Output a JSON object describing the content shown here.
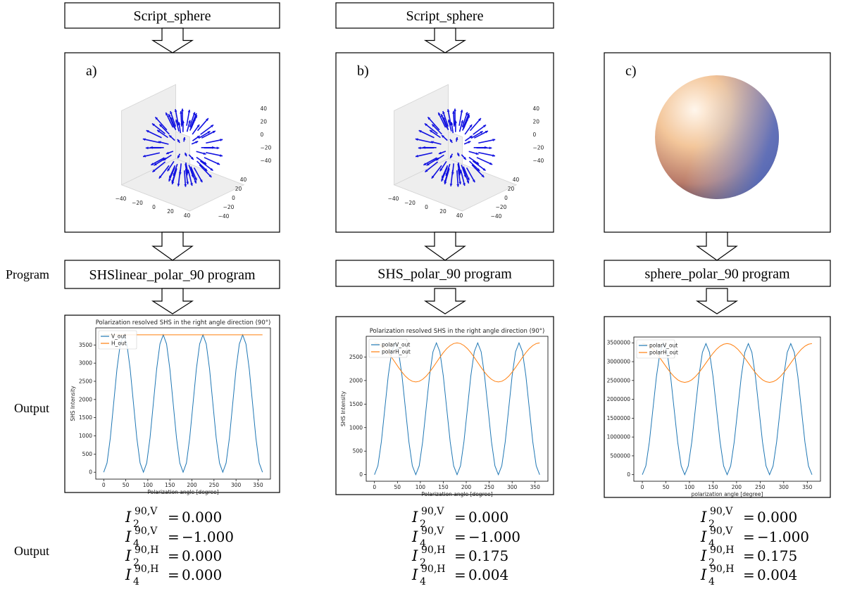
{
  "row_labels": [
    "Program",
    "Output",
    "Output"
  ],
  "equation_symbol": "I",
  "equation_relation": "=",
  "columns": [
    {
      "script": "Script_sphere",
      "panel": {
        "label": "a)",
        "axis_ticks": {
          "x": [
            "−40",
            "−20",
            "0",
            "20",
            "40"
          ],
          "y": [
            "40",
            "20",
            "0",
            "−20",
            "−40"
          ],
          "z": [
            "40",
            "20",
            "0",
            "−20",
            "−40"
          ]
        }
      },
      "program": "SHSlinear_polar_90 program",
      "chart_data": {
        "type": "line",
        "title": "Polarization resolved SHS in the right angle direction (90°)",
        "x_label": "Polarization angle [degree]",
        "y_label": "SHS Intensity",
        "x": [
          0,
          7.5,
          15,
          22.5,
          30,
          37.5,
          45,
          52.5,
          60,
          67.5,
          75,
          82.5,
          90,
          97.5,
          105,
          112.5,
          120,
          127.5,
          135,
          142.5,
          150,
          157.5,
          165,
          172.5,
          180,
          187.5,
          195,
          202.5,
          210,
          217.5,
          225,
          232.5,
          240,
          247.5,
          255,
          262.5,
          270,
          277.5,
          285,
          292.5,
          300,
          307.5,
          315,
          322.5,
          330,
          337.5,
          345,
          352.5,
          360
        ],
        "series": [
          {
            "name": "V_out",
            "color": "#1f77b4",
            "values": [
              0,
              253,
              945,
              1890,
              2835,
              3527,
              3780,
              3527,
              2835,
              1890,
              945,
              253,
              0,
              253,
              945,
              1890,
              2835,
              3527,
              3780,
              3527,
              2835,
              1890,
              945,
              253,
              0,
              253,
              945,
              1890,
              2835,
              3527,
              3780,
              3527,
              2835,
              1890,
              945,
              253,
              0,
              253,
              945,
              1890,
              2835,
              3527,
              3780,
              3527,
              2835,
              1890,
              945,
              253,
              0
            ]
          },
          {
            "name": "H_out",
            "color": "#ff7f0e",
            "values": [
              3780,
              3780,
              3780,
              3780,
              3780,
              3780,
              3780,
              3780,
              3780,
              3780,
              3780,
              3780,
              3780,
              3780,
              3780,
              3780,
              3780,
              3780,
              3780,
              3780,
              3780,
              3780,
              3780,
              3780,
              3780,
              3780,
              3780,
              3780,
              3780,
              3780,
              3780,
              3780,
              3780,
              3780,
              3780,
              3780,
              3780,
              3780,
              3780,
              3780,
              3780,
              3780,
              3780,
              3780,
              3780,
              3780,
              3780,
              3780,
              3780
            ]
          }
        ],
        "xlim": [
          -18,
          378
        ],
        "ylim": [
          -190,
          3970
        ],
        "xticks": [
          0,
          50,
          100,
          150,
          200,
          250,
          300,
          350
        ],
        "yticks": [
          0,
          500,
          1000,
          1500,
          2000,
          2500,
          3000,
          3500
        ],
        "legend": "upper left"
      },
      "equations": [
        {
          "sub": "2",
          "sup": "90,V",
          "value": "0.000"
        },
        {
          "sub": "4",
          "sup": "90,V",
          "value": "−1.000"
        },
        {
          "sub": "2",
          "sup": "90,H",
          "value": "0.000"
        },
        {
          "sub": "4",
          "sup": "90,H",
          "value": "0.000"
        }
      ]
    },
    {
      "script": "Script_sphere",
      "panel": {
        "label": "b)",
        "axis_ticks": {
          "x": [
            "−40",
            "−20",
            "0",
            "20",
            "40"
          ],
          "y": [
            "40",
            "20",
            "0",
            "−20",
            "−40"
          ],
          "z": [
            "40",
            "20",
            "0",
            "−20",
            "−40"
          ]
        }
      },
      "program": "SHS_polar_90 program",
      "chart_data": {
        "type": "line",
        "title": "Polarization resolved SHS in the right angle direction (90°)",
        "x_label": "Polarization angle [degree]",
        "y_label": "SHS Intensity",
        "x": [
          0,
          7.5,
          15,
          22.5,
          30,
          37.5,
          45,
          52.5,
          60,
          67.5,
          75,
          82.5,
          90,
          97.5,
          105,
          112.5,
          120,
          127.5,
          135,
          142.5,
          150,
          157.5,
          165,
          172.5,
          180,
          187.5,
          195,
          202.5,
          210,
          217.5,
          225,
          232.5,
          240,
          247.5,
          255,
          262.5,
          270,
          277.5,
          285,
          292.5,
          300,
          307.5,
          315,
          322.5,
          330,
          337.5,
          345,
          352.5,
          360
        ],
        "series": [
          {
            "name": "polarV_out",
            "color": "#1f77b4",
            "values": [
              0,
              188,
              700,
              1400,
              2100,
              2612,
              2800,
              2612,
              2100,
              1400,
              700,
              188,
              0,
              188,
              700,
              1400,
              2100,
              2612,
              2800,
              2612,
              2100,
              1400,
              700,
              188,
              0,
              188,
              700,
              1400,
              2100,
              2612,
              2800,
              2612,
              2100,
              1400,
              700,
              188,
              0,
              188,
              700,
              1400,
              2100,
              2612,
              2800,
              2612,
              2100,
              1400,
              700,
              188,
              0
            ]
          },
          {
            "name": "polarH_out",
            "color": "#ff7f0e",
            "values": [
              2800,
              2786,
              2744,
              2679,
              2593,
              2492,
              2385,
              2278,
              2178,
              2091,
              2026,
              1984,
              1970,
              1984,
              2026,
              2091,
              2178,
              2278,
              2385,
              2492,
              2593,
              2679,
              2744,
              2786,
              2800,
              2786,
              2744,
              2679,
              2593,
              2492,
              2385,
              2278,
              2178,
              2091,
              2026,
              1984,
              1970,
              1984,
              2026,
              2091,
              2178,
              2278,
              2385,
              2492,
              2593,
              2679,
              2744,
              2786,
              2800
            ]
          }
        ],
        "xlim": [
          -18,
          378
        ],
        "ylim": [
          -140,
          2940
        ],
        "xticks": [
          0,
          50,
          100,
          150,
          200,
          250,
          300,
          350
        ],
        "yticks": [
          0,
          500,
          1000,
          1500,
          2000,
          2500
        ],
        "legend": "upper left"
      },
      "equations": [
        {
          "sub": "2",
          "sup": "90,V",
          "value": "0.000"
        },
        {
          "sub": "4",
          "sup": "90,V",
          "value": "−1.000"
        },
        {
          "sub": "2",
          "sup": "90,H",
          "value": "0.175"
        },
        {
          "sub": "4",
          "sup": "90,H",
          "value": "0.004"
        }
      ]
    },
    {
      "panel": {
        "label": "c)"
      },
      "program": "sphere_polar_90 program",
      "chart_data": {
        "type": "line",
        "x_label": "polarization angle [degree]",
        "x": [
          0,
          7.5,
          15,
          22.5,
          30,
          37.5,
          45,
          52.5,
          60,
          67.5,
          75,
          82.5,
          90,
          97.5,
          105,
          112.5,
          120,
          127.5,
          135,
          142.5,
          150,
          157.5,
          165,
          172.5,
          180,
          187.5,
          195,
          202.5,
          210,
          217.5,
          225,
          232.5,
          240,
          247.5,
          255,
          262.5,
          270,
          277.5,
          285,
          292.5,
          300,
          307.5,
          315,
          322.5,
          330,
          337.5,
          345,
          352.5,
          360
        ],
        "series": [
          {
            "name": "polarV_out",
            "color": "#1f77b4",
            "values": [
              0,
              233000,
              870000,
              1740000,
              2610000,
              3247000,
              3480000,
              3247000,
              2610000,
              1740000,
              870000,
              233000,
              0,
              233000,
              870000,
              1740000,
              2610000,
              3247000,
              3480000,
              3247000,
              2610000,
              1740000,
              870000,
              233000,
              0,
              233000,
              870000,
              1740000,
              2610000,
              3247000,
              3480000,
              3247000,
              2610000,
              1740000,
              870000,
              233000,
              0,
              233000,
              870000,
              1740000,
              2610000,
              3247000,
              3480000,
              3247000,
              2610000,
              1740000,
              870000,
              233000,
              0
            ]
          },
          {
            "name": "polarH_out",
            "color": "#ff7f0e",
            "values": [
              3480000,
              3462000,
              3411000,
              3330000,
              3222000,
              3098000,
              2965000,
              2832000,
              2707000,
              2600000,
              2519000,
              2468000,
              2450000,
              2468000,
              2519000,
              2600000,
              2707000,
              2832000,
              2965000,
              3098000,
              3222000,
              3330000,
              3411000,
              3462000,
              3480000,
              3462000,
              3411000,
              3330000,
              3222000,
              3098000,
              2965000,
              2832000,
              2707000,
              2600000,
              2519000,
              2468000,
              2450000,
              2468000,
              2519000,
              2600000,
              2707000,
              2832000,
              2965000,
              3098000,
              3222000,
              3330000,
              3411000,
              3462000,
              3480000
            ]
          }
        ],
        "xlim": [
          -18,
          378
        ],
        "ylim": [
          -174000,
          3654000
        ],
        "xticks": [
          0,
          50,
          100,
          150,
          200,
          250,
          300,
          350
        ],
        "yticks": [
          0,
          500000,
          1000000,
          1500000,
          2000000,
          2500000,
          3000000,
          3500000
        ],
        "legend": "upper left"
      },
      "equations": [
        {
          "sub": "2",
          "sup": "90,V",
          "value": "0.000"
        },
        {
          "sub": "4",
          "sup": "90,V",
          "value": "−1.000"
        },
        {
          "sub": "2",
          "sup": "90,H",
          "value": "0.175"
        },
        {
          "sub": "4",
          "sup": "90,H",
          "value": "0.004"
        }
      ]
    }
  ]
}
